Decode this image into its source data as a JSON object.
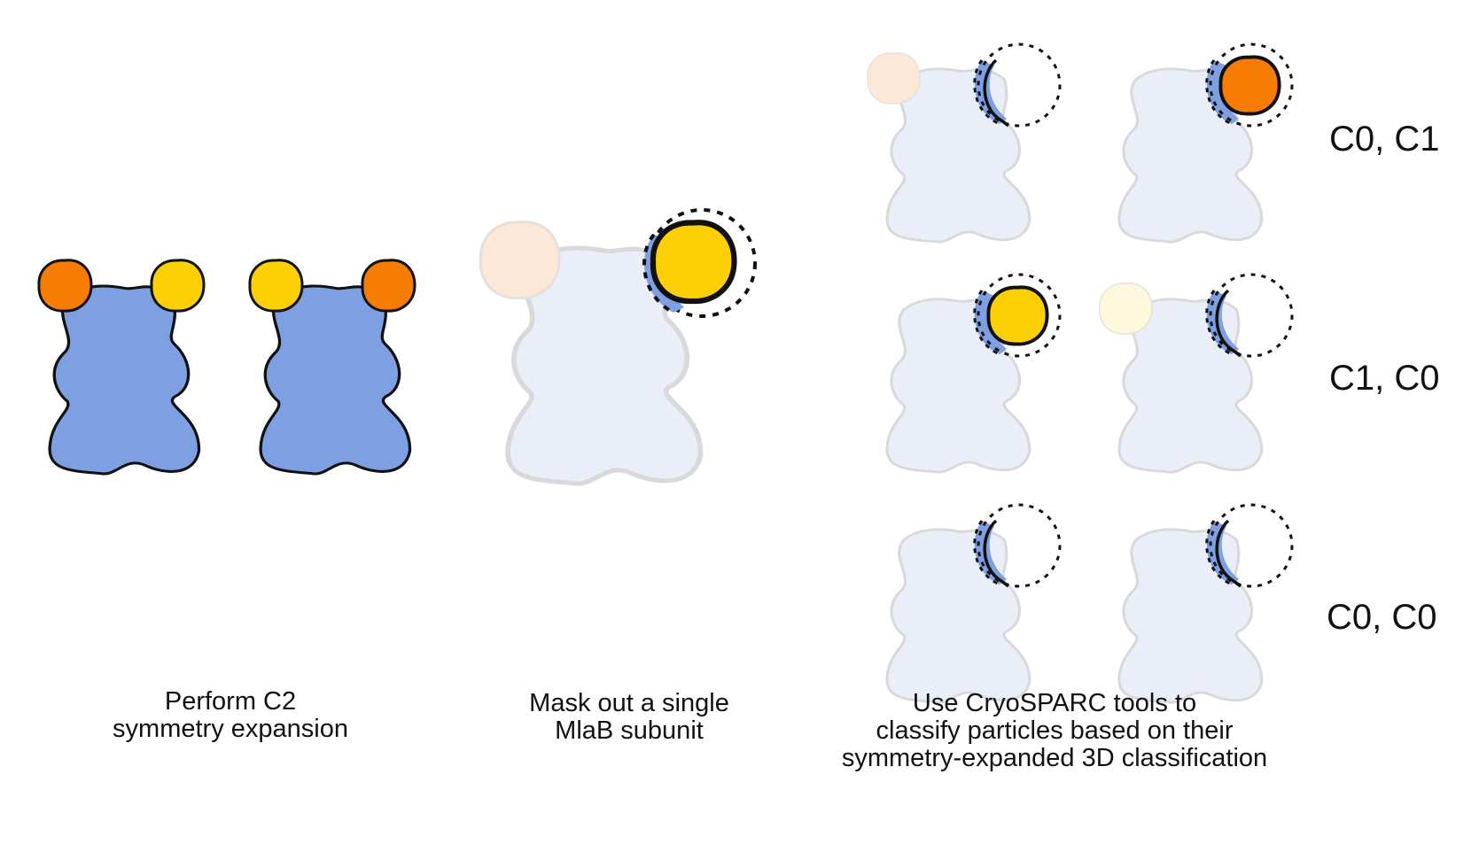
{
  "colors": {
    "body": "#7f9fe3",
    "body_faded": "#e9eef9",
    "faded_outline": "#d9d9d9",
    "orange": "#f67c03",
    "orange_faded": "#fde8d8",
    "yellow": "#fdd005",
    "yellow_faded": "#fef7dc",
    "outline": "#111111"
  },
  "steps": [
    {
      "lines": [
        "Perform C2",
        "symmetry expansion"
      ]
    },
    {
      "lines": [
        "Mask out a single",
        "MlaB subunit"
      ]
    },
    {
      "lines": [
        "Use CryoSPARC tools to",
        "classify particles based on their",
        "symmetry-expanded 3D classification"
      ]
    }
  ],
  "classification_rows": [
    {
      "label": "C0, C1",
      "left_particle": {
        "faded_subunit": "orange-faded",
        "masked_subunit": "empty"
      },
      "right_particle": {
        "faded_subunit": "none",
        "masked_subunit": "orange"
      }
    },
    {
      "label": "C1, C0",
      "left_particle": {
        "faded_subunit": "none",
        "masked_subunit": "yellow"
      },
      "right_particle": {
        "faded_subunit": "yellow-faded",
        "masked_subunit": "empty"
      }
    },
    {
      "label": "C0, C0",
      "left_particle": {
        "faded_subunit": "none",
        "masked_subunit": "empty"
      },
      "right_particle": {
        "faded_subunit": "none",
        "masked_subunit": "empty"
      }
    }
  ]
}
